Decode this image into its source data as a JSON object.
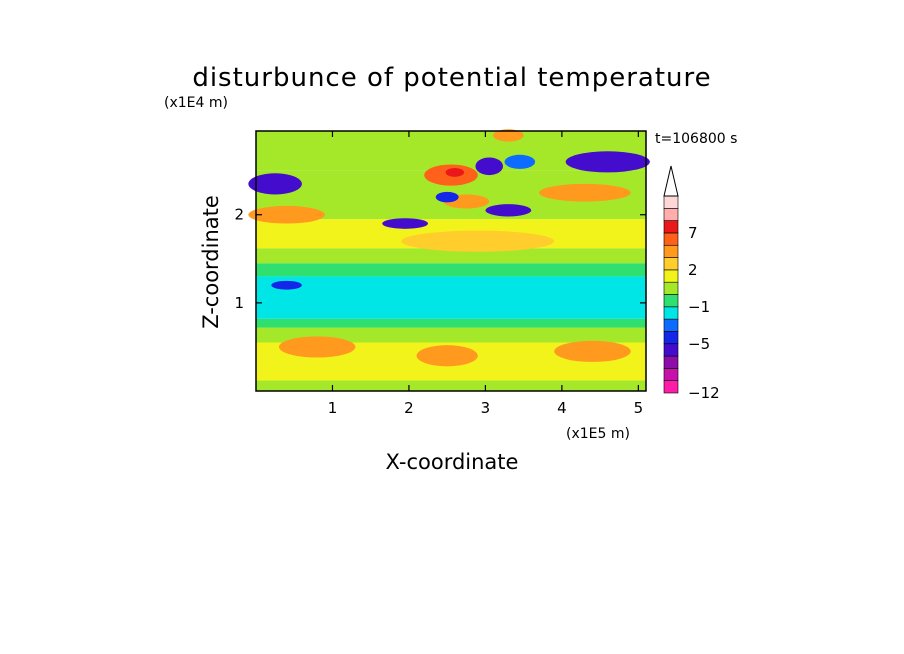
{
  "chart_data": {
    "type": "heatmap",
    "title": "disturbunce of potential temperature",
    "time_label": "t=106800 s",
    "xlabel": "X-coordinate",
    "ylabel": "Z-coordinate",
    "x_unit": "(x1E5 m)",
    "y_unit": "(x1E4 m)",
    "xlim": [
      0,
      5.1
    ],
    "ylim": [
      0,
      2.95
    ],
    "x_ticks": [
      1,
      2,
      3,
      4,
      5
    ],
    "y_ticks": [
      1,
      2
    ],
    "grid": false,
    "colorbar": {
      "placement": "right",
      "extend_max": true,
      "levels": [
        -12,
        -10,
        -8,
        -6,
        -5,
        -4,
        -3,
        -1,
        0,
        1,
        2,
        3,
        5,
        7,
        9,
        11
      ],
      "colors": [
        "#ff1ca8",
        "#c711ab",
        "#8c0da8",
        "#440ccc",
        "#1426e8",
        "#0d6cff",
        "#00e6e6",
        "#2fe070",
        "#a5e82a",
        "#f3f31c",
        "#ffce2c",
        "#ff9a1e",
        "#ff601a",
        "#ea1818",
        "#ffadad",
        "#ffd7d7"
      ],
      "labels": [
        {
          "value": -12,
          "text": "−12"
        },
        {
          "value": -5,
          "text": "−5"
        },
        {
          "value": -1,
          "text": "−1"
        },
        {
          "value": 2,
          "text": "2"
        },
        {
          "value": 7,
          "text": "7"
        }
      ]
    },
    "bands": [
      {
        "z": [
          0.0,
          0.12
        ],
        "value": 0.4
      },
      {
        "z": [
          0.12,
          0.55
        ],
        "value": 1.8
      },
      {
        "z": [
          0.55,
          0.72
        ],
        "value": 0.5
      },
      {
        "z": [
          0.72,
          0.82
        ],
        "value": -0.3
      },
      {
        "z": [
          0.82,
          1.3
        ],
        "value": -1.8
      },
      {
        "z": [
          1.3,
          1.45
        ],
        "value": -0.4
      },
      {
        "z": [
          1.45,
          1.62
        ],
        "value": 0.6
      },
      {
        "z": [
          1.62,
          1.95
        ],
        "value": 1.2
      },
      {
        "z": [
          1.95,
          2.5
        ],
        "value": 0.8
      },
      {
        "z": [
          2.5,
          2.95
        ],
        "value": 0.3
      }
    ],
    "features": [
      {
        "x": 0.25,
        "z": 2.35,
        "rx": 0.35,
        "rz": 0.12,
        "value": -5.5
      },
      {
        "x": 0.4,
        "z": 2.0,
        "rx": 0.5,
        "rz": 0.1,
        "value": 3.5
      },
      {
        "x": 1.95,
        "z": 1.9,
        "rx": 0.3,
        "rz": 0.06,
        "value": -5.5
      },
      {
        "x": 2.55,
        "z": 2.45,
        "rx": 0.35,
        "rz": 0.12,
        "value": 6
      },
      {
        "x": 2.6,
        "z": 2.48,
        "rx": 0.12,
        "rz": 0.05,
        "value": 8
      },
      {
        "x": 3.05,
        "z": 2.55,
        "rx": 0.18,
        "rz": 0.1,
        "value": -5.5
      },
      {
        "x": 2.75,
        "z": 2.15,
        "rx": 0.3,
        "rz": 0.08,
        "value": 4
      },
      {
        "x": 2.5,
        "z": 2.2,
        "rx": 0.15,
        "rz": 0.06,
        "value": -4.5
      },
      {
        "x": 3.3,
        "z": 2.05,
        "rx": 0.3,
        "rz": 0.07,
        "value": -5.5
      },
      {
        "x": 3.3,
        "z": 2.9,
        "rx": 0.2,
        "rz": 0.07,
        "value": 4.5
      },
      {
        "x": 3.45,
        "z": 2.6,
        "rx": 0.2,
        "rz": 0.08,
        "value": -4
      },
      {
        "x": 4.6,
        "z": 2.6,
        "rx": 0.55,
        "rz": 0.12,
        "value": -5.5
      },
      {
        "x": 4.3,
        "z": 2.25,
        "rx": 0.6,
        "rz": 0.1,
        "value": 3.5
      },
      {
        "x": 2.9,
        "z": 1.7,
        "rx": 1.0,
        "rz": 0.12,
        "value": 2.5
      },
      {
        "x": 0.8,
        "z": 0.5,
        "rx": 0.5,
        "rz": 0.12,
        "value": 3.5
      },
      {
        "x": 2.5,
        "z": 0.4,
        "rx": 0.4,
        "rz": 0.12,
        "value": 3.5
      },
      {
        "x": 4.4,
        "z": 0.45,
        "rx": 0.5,
        "rz": 0.12,
        "value": 3.5
      },
      {
        "x": 0.4,
        "z": 1.2,
        "rx": 0.2,
        "rz": 0.05,
        "value": -4.5
      }
    ]
  }
}
